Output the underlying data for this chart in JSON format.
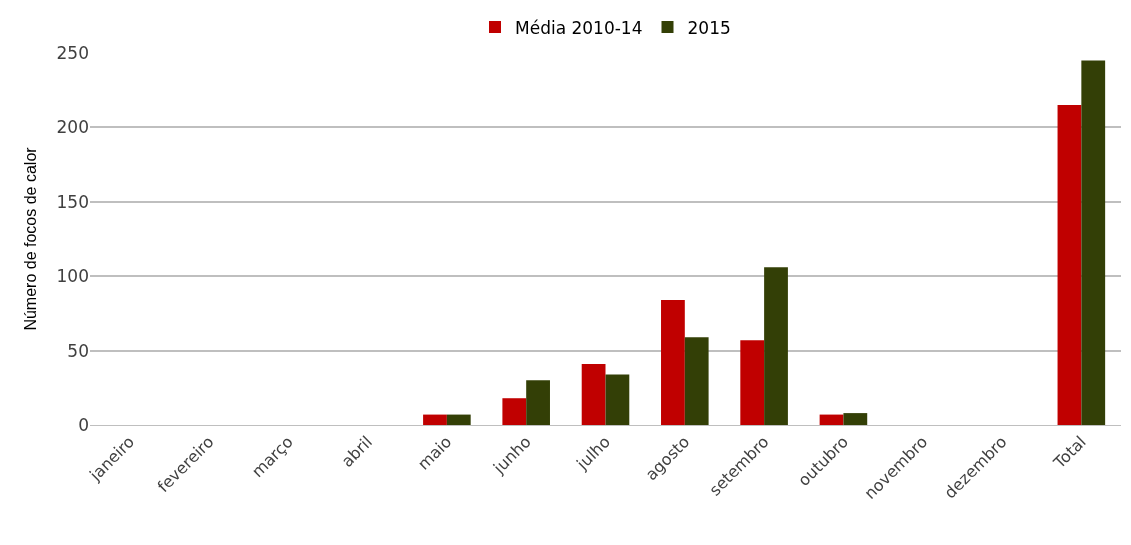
{
  "chart_data": {
    "type": "bar",
    "ylabel": "Número de focos de calor",
    "categories": [
      "janeiro",
      "fevereiro",
      "março",
      "abril",
      "maio",
      "junho",
      "julho",
      "agosto",
      "setembro",
      "outubro",
      "novembro",
      "dezembro",
      "Total"
    ],
    "series": [
      {
        "name": "Média 2010-14",
        "color": "#c00000",
        "values": [
          0,
          0,
          0,
          0,
          7,
          18,
          41,
          84,
          57,
          7,
          0,
          0,
          215
        ]
      },
      {
        "name": "2015",
        "color": "#333f06",
        "values": [
          0,
          0,
          0,
          0,
          7,
          30,
          34,
          59,
          106,
          8,
          0,
          0,
          245
        ]
      }
    ],
    "ylim": [
      0,
      250
    ],
    "yticks": [
      0,
      50,
      100,
      150,
      200,
      250
    ],
    "grid": "y",
    "legend": "top"
  }
}
